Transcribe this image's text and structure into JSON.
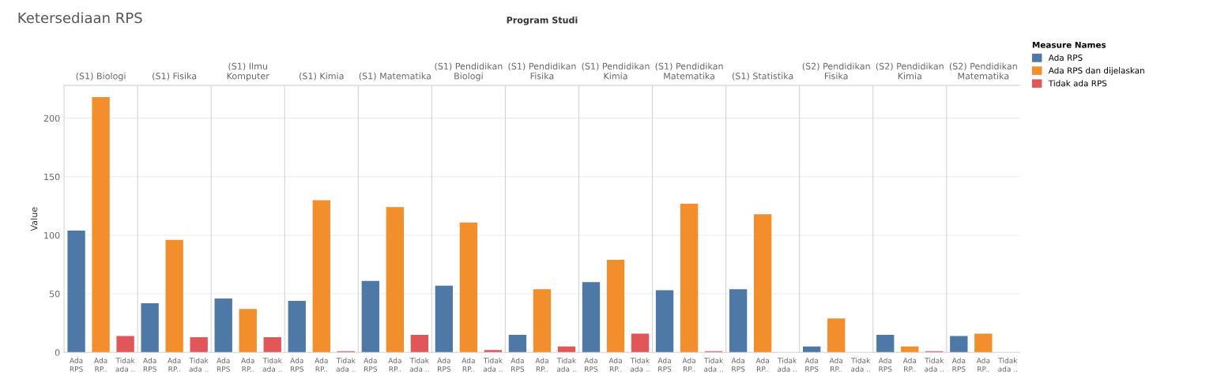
{
  "chart_data": {
    "type": "bar",
    "title": "Ketersediaan RPS",
    "xlabel": "Program Studi",
    "ylabel": "Value",
    "legend_title": "Measure Names",
    "categories": [
      "(S1) Biologi",
      "(S1) Fisika",
      "(S1) Ilmu Komputer",
      "(S1) Kimia",
      "(S1) Matematika",
      "(S1) Pendidikan Biologi",
      "(S1) Pendidikan Fisika",
      "(S1) Pendidikan Kimia",
      "(S1) Pendidikan Matematika",
      "(S1) Statistika",
      "(S2) Pendidikan Fisika",
      "(S2) Pendidikan Kimia",
      "(S2) Pendidikan Matematika"
    ],
    "series": [
      {
        "name": "Ada RPS",
        "color": "#4e79a7",
        "values": [
          104,
          42,
          46,
          44,
          61,
          57,
          15,
          60,
          53,
          54,
          5,
          15,
          14
        ]
      },
      {
        "name": "Ada RPS dan dijelaskan",
        "color": "#f28e2b",
        "values": [
          218,
          96,
          37,
          130,
          124,
          111,
          54,
          79,
          127,
          118,
          29,
          5,
          16
        ]
      },
      {
        "name": "Tidak ada RPS",
        "color": "#e15759",
        "values": [
          14,
          13,
          13,
          1,
          15,
          2,
          5,
          16,
          1,
          0,
          0,
          1,
          0
        ]
      }
    ],
    "annotations": [
      "Ada RPS",
      "Ada RP..",
      "Tidak ada ..",
      "Ada RPS",
      "Ada RP..",
      "Tidak ada ..",
      "Ada RPS",
      "Ada RP..",
      "Tidak ada ..",
      "Ada RPS",
      "Ada RP..",
      "Tidak ada ..",
      "Ada RPS",
      "Ada RP..",
      "Tidak ada ..",
      "Ada RPS",
      "Ada RP..",
      "Tidak ada ..",
      "Ada RPS",
      "Ada RP..",
      "Tidak ada ..",
      "Ada RPS",
      "Ada RP..",
      "Tidak ada ..",
      "Ada RPS",
      "Ada RP..",
      "Tidak ada ..",
      "Ada RPS",
      "Ada RP..",
      "Tidak ada ..",
      "Ada RPS",
      "Ada RP..",
      "Tidak ada ..",
      "Ada RPS",
      "Ada RP..",
      "Tidak ada ..",
      "Ada RPS",
      "Ada RP..",
      "Tidak ada .."
    ],
    "ylim": [
      0,
      228
    ],
    "yticks": [
      0,
      50,
      100,
      150,
      200
    ],
    "grid": "y",
    "legend": "top right"
  }
}
